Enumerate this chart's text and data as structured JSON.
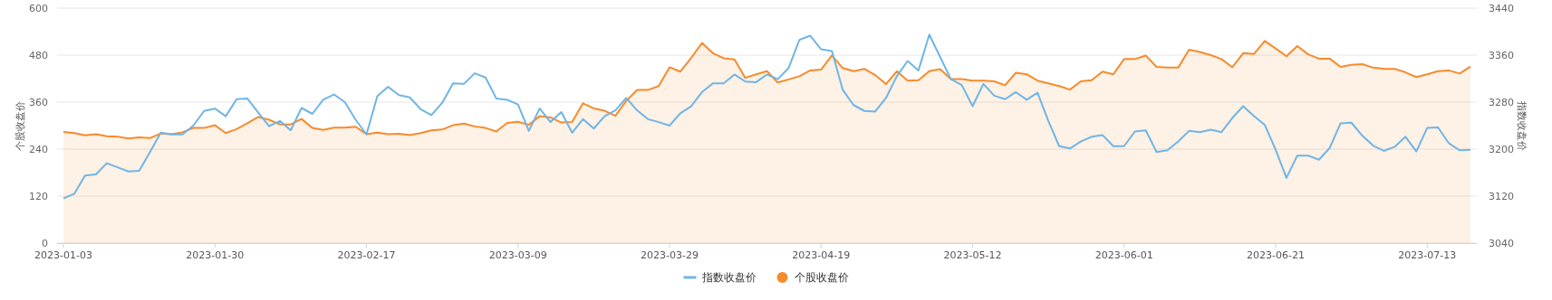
{
  "chart_data": {
    "type": "line",
    "ylabel": "个股收盘价",
    "y2label": "指数收盘价",
    "categories": [
      "2023-01-03",
      null,
      null,
      null,
      null,
      null,
      null,
      null,
      null,
      null,
      null,
      null,
      null,
      null,
      "2023-01-30",
      null,
      null,
      null,
      null,
      null,
      null,
      null,
      null,
      null,
      null,
      null,
      null,
      null,
      "2023-02-17",
      null,
      null,
      null,
      null,
      null,
      null,
      null,
      null,
      null,
      null,
      null,
      null,
      null,
      "2023-03-09",
      null,
      null,
      null,
      null,
      null,
      null,
      null,
      null,
      null,
      null,
      null,
      null,
      null,
      "2023-03-29",
      null,
      null,
      null,
      null,
      null,
      null,
      null,
      null,
      null,
      null,
      null,
      null,
      null,
      "2023-04-19",
      null,
      null,
      null,
      null,
      null,
      null,
      null,
      null,
      null,
      null,
      null,
      null,
      null,
      "2023-05-12",
      null,
      null,
      null,
      null,
      null,
      null,
      null,
      null,
      null,
      null,
      null,
      null,
      null,
      "2023-06-01",
      null,
      null,
      null,
      null,
      null,
      null,
      null,
      null,
      null,
      null,
      null,
      null,
      null,
      "2023-06-21",
      null,
      null,
      null,
      null,
      null,
      null,
      null,
      null,
      null,
      null,
      null,
      null,
      null,
      "2023-07-13",
      null,
      null,
      null,
      null
    ],
    "ylim": [
      0,
      600
    ],
    "yticks": [
      0,
      120,
      240,
      360,
      480,
      600
    ],
    "y2lim": [
      3040,
      3440
    ],
    "y2ticks": [
      3040,
      3120,
      3200,
      3280,
      3360,
      3440
    ],
    "grid": "y",
    "legend": "bottom",
    "series": [
      {
        "name": "指数收盘价",
        "axis": "y2",
        "color": "#6fb5e6",
        "values": [
          3116,
          3124,
          3155,
          3157,
          3176,
          3169,
          3162,
          3163,
          3195,
          3228,
          3225,
          3225,
          3240,
          3265,
          3269,
          3256,
          3285,
          3286,
          3262,
          3239,
          3248,
          3232,
          3270,
          3260,
          3284,
          3293,
          3280,
          3250,
          3225,
          3290,
          3306,
          3292,
          3288,
          3268,
          3258,
          3279,
          3312,
          3311,
          3329,
          3322,
          3286,
          3284,
          3276,
          3231,
          3269,
          3246,
          3263,
          3228,
          3251,
          3235,
          3256,
          3266,
          3287,
          3266,
          3251,
          3246,
          3240,
          3261,
          3273,
          3297,
          3312,
          3312,
          3327,
          3315,
          3314,
          3327,
          3319,
          3338,
          3386,
          3393,
          3370,
          3367,
          3301,
          3275,
          3265,
          3264,
          3287,
          3324,
          3350,
          3334,
          3395,
          3357,
          3319,
          3309,
          3273,
          3311,
          3291,
          3285,
          3297,
          3284,
          3296,
          3248,
          3205,
          3201,
          3213,
          3221,
          3224,
          3205,
          3205,
          3230,
          3232,
          3195,
          3198,
          3213,
          3231,
          3229,
          3233,
          3229,
          3253,
          3273,
          3256,
          3241,
          3199,
          3151,
          3189,
          3189,
          3182,
          3202,
          3244,
          3245,
          3223,
          3206,
          3197,
          3204,
          3221,
          3196,
          3236,
          3237,
          3210,
          3198,
          3199
        ]
      },
      {
        "name": "个股收盘价",
        "type": "area",
        "color": "#f68b2c",
        "values": [
          284,
          281,
          275,
          278,
          273,
          272,
          267,
          270,
          268,
          280,
          278,
          283,
          294,
          294,
          301,
          281,
          291,
          306,
          322,
          315,
          303,
          303,
          317,
          294,
          289,
          295,
          295,
          297,
          278,
          282,
          278,
          279,
          276,
          281,
          288,
          290,
          301,
          305,
          298,
          294,
          285,
          307,
          310,
          302,
          324,
          321,
          308,
          309,
          357,
          344,
          338,
          325,
          363,
          391,
          391,
          401,
          449,
          438,
          473,
          511,
          485,
          472,
          469,
          422,
          431,
          439,
          410,
          418,
          426,
          441,
          443,
          479,
          447,
          439,
          445,
          429,
          406,
          439,
          415,
          416,
          439,
          444,
          419,
          419,
          415,
          415,
          413,
          403,
          435,
          431,
          415,
          408,
          401,
          392,
          413,
          416,
          438,
          431,
          470,
          470,
          479,
          450,
          448,
          448,
          494,
          488,
          480,
          470,
          449,
          485,
          483,
          516,
          497,
          477,
          503,
          482,
          471,
          471,
          450,
          455,
          457,
          448,
          445,
          445,
          436,
          424,
          431,
          439,
          441,
          433,
          451
        ]
      }
    ]
  }
}
